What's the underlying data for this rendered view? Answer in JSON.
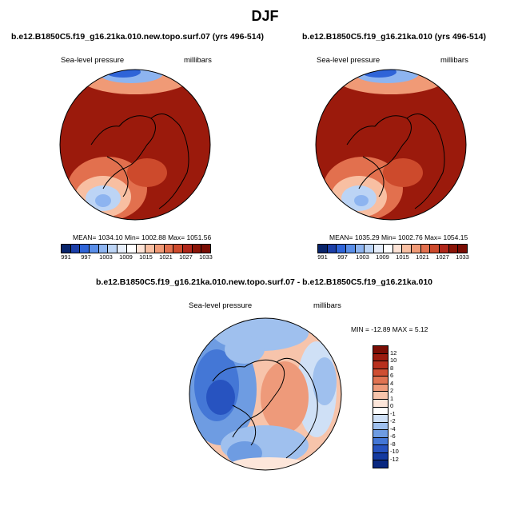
{
  "title": "DJF",
  "panels": [
    {
      "case": "b.e12.B1850C5.f19_g16.21ka.010.new.topo.surf.07 (yrs 496-514)",
      "field": "Sea-level pressure",
      "units": "millibars",
      "stats": "MEAN= 1034.10  Min= 1002.88  Max= 1051.56"
    },
    {
      "case": "b.e12.B1850C5.f19_g16.21ka.010 (yrs 496-514)",
      "field": "Sea-level pressure",
      "units": "millibars",
      "stats": "MEAN= 1035.29  Min= 1002.76  Max= 1054.15"
    }
  ],
  "diff_panel": {
    "case": "b.e12.B1850C5.f19_g16.21ka.010.new.topo.surf.07 - b.e12.B1850C5.f19_g16.21ka.010",
    "field": "Sea-level pressure",
    "units": "millibars",
    "minmax": "MIN = -12.89 MAX =   5.12"
  },
  "colorbar_abs": {
    "labels": [
      "991",
      "997",
      "1003",
      "1009",
      "1015",
      "1021",
      "1027",
      "1033"
    ],
    "colors": [
      "#08246b",
      "#1c3fa8",
      "#2f64d8",
      "#5a8ee8",
      "#8db4f0",
      "#bcd4f5",
      "#e6eefa",
      "#ffffff",
      "#fde3d6",
      "#f8bfa2",
      "#f09a76",
      "#e2704e",
      "#cd4a2c",
      "#b0271a",
      "#8a1407",
      "#7a0d04"
    ]
  },
  "colorbar_diff": {
    "labels": [
      "12",
      "10",
      "8",
      "6",
      "4",
      "2",
      "1",
      "0",
      "-1",
      "-2",
      "-4",
      "-6",
      "-8",
      "-10",
      "-12"
    ],
    "colors": [
      "#7a0d04",
      "#9b1b0e",
      "#b8301e",
      "#cf4e32",
      "#e07352",
      "#ee9a7a",
      "#f7c4ab",
      "#fde6da",
      "#ffffff",
      "#cfe0f6",
      "#9fc0ee",
      "#6e9ce2",
      "#4477d6",
      "#2753c0",
      "#143aa0",
      "#0a2880"
    ]
  }
}
